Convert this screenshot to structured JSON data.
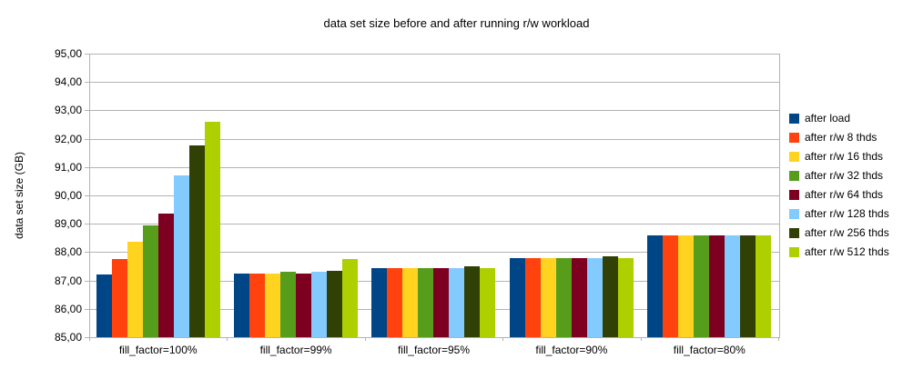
{
  "page": {
    "background": "#ffffff"
  },
  "chart_data": {
    "type": "bar",
    "title": "data set size before and after running r/w workload",
    "ylabel": "data set size (GB)",
    "xlabel": "",
    "ylim": [
      85,
      95
    ],
    "ytick_step": 1,
    "ytick_labels": [
      "95,00",
      "94,00",
      "93,00",
      "92,00",
      "91,00",
      "90,00",
      "89,00",
      "88,00",
      "87,00",
      "86,00",
      "85,00"
    ],
    "grid": true,
    "legend_position": "right",
    "grid_color": "#b3b3b3",
    "axis_color": "#b3b3b3",
    "text_color": "#000000",
    "categories": [
      "fill_factor=100%",
      "fill_factor=99%",
      "fill_factor=95%",
      "fill_factor=90%",
      "fill_factor=80%"
    ],
    "series": [
      {
        "name": "after load",
        "color": "#004586",
        "values": [
          87.2,
          87.25,
          87.45,
          87.8,
          88.6
        ]
      },
      {
        "name": "after r/w 8 thds",
        "color": "#FF420E",
        "values": [
          87.75,
          87.25,
          87.45,
          87.8,
          88.6
        ]
      },
      {
        "name": "after r/w 16 thds",
        "color": "#FFD320",
        "values": [
          88.35,
          87.25,
          87.45,
          87.8,
          88.6
        ]
      },
      {
        "name": "after r/w 32 thds",
        "color": "#579D1C",
        "values": [
          88.95,
          87.3,
          87.45,
          87.8,
          88.6
        ]
      },
      {
        "name": "after r/w 64 thds",
        "color": "#7E0021",
        "values": [
          89.35,
          87.25,
          87.45,
          87.8,
          88.6
        ]
      },
      {
        "name": "after r/w 128 thds",
        "color": "#83CAFF",
        "values": [
          90.7,
          87.3,
          87.45,
          87.8,
          88.6
        ]
      },
      {
        "name": "after r/w 256 thds",
        "color": "#314004",
        "values": [
          91.75,
          87.35,
          87.5,
          87.85,
          88.6
        ]
      },
      {
        "name": "after r/w 512 thds",
        "color": "#AECF00",
        "values": [
          92.6,
          87.75,
          87.45,
          87.8,
          88.6
        ]
      }
    ]
  }
}
